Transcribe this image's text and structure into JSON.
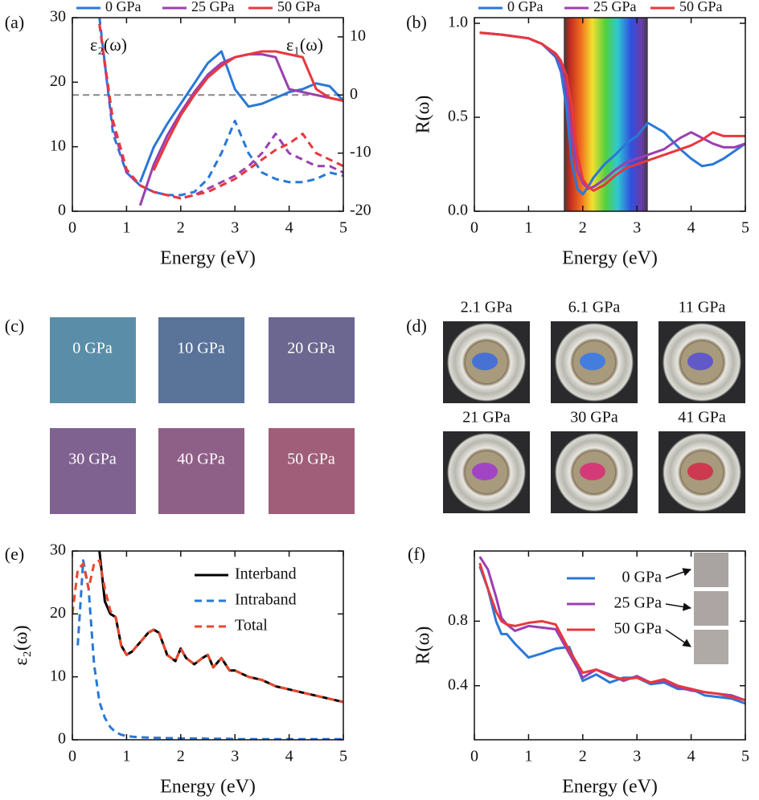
{
  "chart_data": [
    {
      "type": "line",
      "panel": "(a)",
      "xlabel": "Energy (eV)",
      "x": [
        0.5,
        0.75,
        1,
        1.25,
        1.5,
        1.75,
        2,
        2.25,
        2.5,
        2.75,
        3,
        3.25,
        3.5,
        3.75,
        4,
        4.25,
        4.5,
        4.75,
        5
      ],
      "xlim": [
        0,
        5
      ],
      "xticks": [
        0,
        1,
        2,
        3,
        4,
        5
      ],
      "ylim": [
        0,
        30
      ],
      "yticks": [
        0,
        10,
        20,
        30
      ],
      "y2lim": [
        -20,
        13.3
      ],
      "y2ticks": [
        -20,
        -10,
        0,
        10
      ],
      "annotations": [
        "ε₂(ω)",
        "ε₁(ω)"
      ],
      "hline_y2": 0,
      "y_dash": true,
      "legend": "top",
      "series": [
        {
          "name": "0 GPa",
          "color": "#2a78d6",
          "values": [
            30,
            12,
            6,
            4,
            3,
            2.5,
            2.5,
            3,
            5,
            9,
            14,
            9,
            6,
            5,
            4.5,
            4.5,
            5,
            6,
            5.5
          ],
          "values_y2": [
            null,
            null,
            null,
            -15,
            -9,
            -5,
            -1.5,
            2,
            5.5,
            7.5,
            1,
            -2,
            -1.5,
            -0.5,
            0.5,
            1,
            2,
            1.5,
            -1
          ]
        },
        {
          "name": "25 GPa",
          "color": "#9b3fb0",
          "values": [
            29,
            13,
            6,
            4,
            3,
            2.5,
            2,
            2.5,
            3.5,
            4.5,
            5.5,
            7,
            9,
            12,
            9,
            8,
            7,
            7,
            6
          ],
          "values_y2": [
            null,
            null,
            null,
            -19,
            -12,
            -7,
            -3,
            0.5,
            3.5,
            5.5,
            6.5,
            7,
            7,
            6.5,
            1,
            0.5,
            0,
            -0.5,
            -1
          ]
        },
        {
          "name": "50 GPa",
          "color": "#e8383d",
          "values": [
            29,
            14,
            6.5,
            4,
            3,
            2.5,
            2,
            2.5,
            3,
            4,
            5,
            6.5,
            8,
            9.5,
            10.5,
            12,
            9,
            8,
            7
          ],
          "values_y2": [
            null,
            null,
            null,
            null,
            -13,
            -8,
            -3.5,
            0,
            3,
            5,
            6.5,
            7,
            7.5,
            7.5,
            7,
            6.5,
            1,
            -0.5,
            -1
          ]
        }
      ]
    },
    {
      "type": "line",
      "panel": "(b)",
      "xlabel": "Energy (eV)",
      "ylabel": "R(ω)",
      "x": [
        0.1,
        0.5,
        1,
        1.25,
        1.5,
        1.6,
        1.7,
        1.8,
        1.9,
        2.0,
        2.1,
        2.2,
        2.4,
        2.6,
        2.8,
        3.0,
        3.2,
        3.5,
        3.8,
        4.0,
        4.2,
        4.4,
        4.6,
        4.8,
        5.0
      ],
      "xlim": [
        0,
        5
      ],
      "xticks": [
        0,
        1,
        2,
        3,
        4,
        5
      ],
      "ylim": [
        0,
        1.03
      ],
      "yticks": [
        {
          "value": 0,
          "label": "0.0"
        },
        {
          "value": 0.5,
          "label": "0.5"
        },
        {
          "value": 1,
          "label": "1.0"
        }
      ],
      "band": [
        1.65,
        3.2
      ],
      "legend": "top",
      "series": [
        {
          "name": "0 GPa",
          "color": "#2a78d6",
          "values": [
            0.95,
            0.94,
            0.92,
            0.89,
            0.82,
            0.74,
            0.55,
            0.25,
            0.12,
            0.09,
            0.13,
            0.18,
            0.25,
            0.3,
            0.36,
            0.4,
            0.47,
            0.42,
            0.33,
            0.28,
            0.24,
            0.25,
            0.28,
            0.32,
            0.36
          ]
        },
        {
          "name": "25 GPa",
          "color": "#9b3fb0",
          "values": [
            0.95,
            0.94,
            0.92,
            0.89,
            0.83,
            0.78,
            0.65,
            0.4,
            0.22,
            0.15,
            0.12,
            0.13,
            0.17,
            0.22,
            0.26,
            0.28,
            0.3,
            0.33,
            0.39,
            0.42,
            0.39,
            0.36,
            0.34,
            0.34,
            0.36
          ]
        },
        {
          "name": "50 GPa",
          "color": "#e8383d",
          "values": [
            0.95,
            0.94,
            0.92,
            0.89,
            0.84,
            0.8,
            0.72,
            0.55,
            0.3,
            0.17,
            0.13,
            0.11,
            0.14,
            0.19,
            0.23,
            0.25,
            0.27,
            0.3,
            0.33,
            0.35,
            0.38,
            0.42,
            0.4,
            0.4,
            0.4
          ]
        }
      ]
    },
    {
      "type": "swatches",
      "panel": "(c)",
      "labels": [
        "0 GPa",
        "10 GPa",
        "20 GPa",
        "30 GPa",
        "40 GPa",
        "50 GPa"
      ],
      "colors": [
        "#5a8ea8",
        "#5a7398",
        "#6b6790",
        "#7f6290",
        "#8f6087",
        "#a05e78"
      ]
    },
    {
      "type": "images",
      "panel": "(d)",
      "labels": [
        "2.1 GPa",
        "6.1 GPa",
        "11 GPa",
        "21 GPa",
        "30 GPa",
        "41 GPa"
      ],
      "colors": [
        "#3d6de0",
        "#3a7ae8",
        "#5a52d0",
        "#a03ccc",
        "#d83078",
        "#d0304a"
      ]
    },
    {
      "type": "line",
      "panel": "(e)",
      "xlabel": "Energy (eV)",
      "ylabel": "ε₂(ω)",
      "x": [
        0,
        0.1,
        0.2,
        0.3,
        0.4,
        0.5,
        0.6,
        0.7,
        0.8,
        0.9,
        1,
        1.1,
        1.25,
        1.4,
        1.5,
        1.6,
        1.75,
        1.9,
        2,
        2.1,
        2.25,
        2.4,
        2.5,
        2.6,
        2.75,
        2.9,
        3,
        3.25,
        3.5,
        3.75,
        4,
        4.25,
        4.5,
        4.75,
        5
      ],
      "xlim": [
        0,
        5
      ],
      "xticks": [
        0,
        1,
        2,
        3,
        4,
        5
      ],
      "ylim": [
        0,
        30
      ],
      "yticks": [
        0,
        10,
        20,
        30
      ],
      "legend": "upper right",
      "series": [
        {
          "name": "Interband",
          "color": "#000000",
          "dash": false,
          "values": [
            null,
            null,
            null,
            null,
            null,
            30,
            22,
            20,
            19.5,
            15,
            13.5,
            14,
            15.5,
            17,
            17.5,
            17,
            13.5,
            12.5,
            14.5,
            13,
            12,
            13,
            13.5,
            11.5,
            13,
            11,
            11,
            10,
            9.5,
            8.5,
            8,
            7.5,
            7,
            6.5,
            6
          ]
        },
        {
          "name": "Intraband",
          "color": "#2a78d6",
          "dash": true,
          "values": [
            null,
            15,
            28.5,
            24,
            12,
            6,
            3.5,
            2,
            1.2,
            0.8,
            0.6,
            0.5,
            0.4,
            0.35,
            0.3,
            0.3,
            0.25,
            0.25,
            0.2,
            0.2,
            0.2,
            0.2,
            0.15,
            0.15,
            0.15,
            0.15,
            0.1,
            0.1,
            0.1,
            0.1,
            0.1,
            0.1,
            0.1,
            0.1,
            0.1
          ]
        },
        {
          "name": "Total",
          "color": "#e8482d",
          "dash": true,
          "values": [
            20,
            27,
            28,
            24,
            28,
            28.5,
            24,
            20.5,
            19.5,
            15,
            13.5,
            14,
            15.5,
            17,
            17.5,
            17,
            13.5,
            12.5,
            14.5,
            13,
            12,
            13,
            13.5,
            11.5,
            13,
            11,
            11,
            10,
            9.5,
            8.5,
            8,
            7.5,
            7,
            6.5,
            6
          ]
        }
      ]
    },
    {
      "type": "line",
      "panel": "(f)",
      "xlabel": "Energy (eV)",
      "ylabel": "R(ω)",
      "x": [
        0.1,
        0.25,
        0.4,
        0.5,
        0.6,
        0.75,
        1,
        1.25,
        1.5,
        1.75,
        2,
        2.25,
        2.5,
        2.75,
        3,
        3.25,
        3.5,
        3.75,
        4,
        4.25,
        4.5,
        4.75,
        5
      ],
      "xlim": [
        0,
        5
      ],
      "xticks": [
        0,
        1,
        2,
        3,
        4,
        5
      ],
      "ylim": [
        0.065,
        1.235
      ],
      "yticks": [
        0.4,
        0.8
      ],
      "legend": "upper right",
      "series": [
        {
          "name": "0 GPa",
          "color": "#2a78d6",
          "swatch": "#a9a3a2",
          "values": [
            1.14,
            1.0,
            0.8,
            0.72,
            0.72,
            0.66,
            0.575,
            0.6,
            0.63,
            0.64,
            0.43,
            0.47,
            0.42,
            0.45,
            0.45,
            0.41,
            0.42,
            0.38,
            0.38,
            0.34,
            0.33,
            0.32,
            0.29
          ]
        },
        {
          "name": "25 GPa",
          "color": "#9b3fb0",
          "swatch": "#aca5a3",
          "values": [
            1.2,
            1.12,
            0.95,
            0.82,
            0.78,
            0.74,
            0.77,
            0.76,
            0.75,
            0.6,
            0.45,
            0.5,
            0.47,
            0.43,
            0.46,
            0.42,
            0.43,
            0.39,
            0.37,
            0.36,
            0.35,
            0.34,
            0.31
          ]
        },
        {
          "name": "50 GPa",
          "color": "#e8383d",
          "swatch": "#b0aaa6",
          "values": [
            1.16,
            1.0,
            0.86,
            0.8,
            0.78,
            0.77,
            0.79,
            0.8,
            0.78,
            0.62,
            0.48,
            0.5,
            0.46,
            0.44,
            0.45,
            0.42,
            0.44,
            0.4,
            0.38,
            0.36,
            0.35,
            0.33,
            0.31
          ]
        }
      ]
    }
  ]
}
